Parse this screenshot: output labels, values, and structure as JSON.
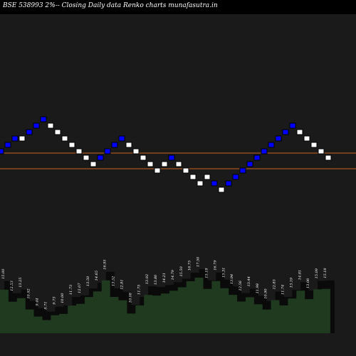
{
  "header": {
    "title": "BSE 538993 2%-- Closing Daily data Renko charts munafasutra.in"
  },
  "colors": {
    "background": "#000000",
    "panel": "#1a1a1a",
    "up_brick": "#ffffff",
    "down_brick": "#0000ff",
    "reference_line": "#c8641e",
    "volume_area": "#1f3a1f",
    "volume_shadow": "#0a0a0a"
  },
  "chart_data": {
    "type": "renko",
    "reference_levels": [
      1,
      0
    ],
    "bricks": [
      1,
      1,
      1,
      1,
      1,
      1,
      1,
      1,
      1,
      0,
      0,
      0,
      0,
      0,
      0,
      0,
      0,
      1,
      1,
      1,
      0,
      0,
      0,
      0,
      0,
      0,
      0,
      0,
      0,
      0,
      0,
      0,
      0,
      0,
      0,
      0,
      0,
      0,
      0,
      0,
      0,
      0,
      1
    ],
    "volume": {
      "labels": [
        "15.00",
        "12.53",
        "13.25",
        "10.92",
        "9.44",
        "8.71",
        "9.73",
        "10.00",
        "11.73",
        "12.07",
        "13.50",
        "14.65",
        "16.95",
        "13.52",
        "12.81",
        "10.08",
        "11.75",
        "13.92",
        "13.80",
        "14.21",
        "14.79",
        "15.50",
        "16.75",
        "17.50",
        "15.18",
        "16.79",
        "15.31",
        "13.94",
        "12.56",
        "13.44",
        "11.98",
        "10.90",
        "12.85",
        "11.74",
        "13.19",
        "14.81",
        "13.06",
        "15.09",
        "15.18"
      ]
    }
  }
}
